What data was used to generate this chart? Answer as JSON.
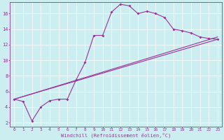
{
  "xlabel": "Windchill (Refroidissement éolien,°C)",
  "background_color": "#cceef0",
  "line_color": "#993399",
  "xlim": [
    -0.5,
    23.5
  ],
  "ylim": [
    1.5,
    17.5
  ],
  "yticks": [
    2,
    4,
    6,
    8,
    10,
    12,
    14,
    16
  ],
  "xticks": [
    0,
    1,
    2,
    3,
    4,
    5,
    6,
    7,
    8,
    9,
    10,
    11,
    12,
    13,
    14,
    15,
    16,
    17,
    18,
    19,
    20,
    21,
    22,
    23
  ],
  "series1": [
    [
      0,
      5.0
    ],
    [
      1,
      4.7
    ],
    [
      2,
      2.2
    ],
    [
      3,
      4.0
    ],
    [
      4,
      4.8
    ],
    [
      5,
      5.0
    ],
    [
      6,
      5.0
    ],
    [
      7,
      7.5
    ],
    [
      8,
      9.7
    ],
    [
      9,
      13.2
    ],
    [
      10,
      13.2
    ],
    [
      11,
      16.2
    ],
    [
      12,
      17.2
    ],
    [
      13,
      17.0
    ],
    [
      14,
      16.0
    ],
    [
      15,
      16.3
    ],
    [
      16,
      16.0
    ],
    [
      17,
      15.5
    ],
    [
      18,
      14.0
    ],
    [
      19,
      13.8
    ],
    [
      20,
      13.5
    ],
    [
      21,
      13.0
    ],
    [
      22,
      12.8
    ],
    [
      23,
      12.7
    ]
  ],
  "series2": [
    [
      0,
      5.0
    ],
    [
      23,
      12.7
    ]
  ],
  "series3": [
    [
      0,
      5.0
    ],
    [
      23,
      13.0
    ]
  ]
}
